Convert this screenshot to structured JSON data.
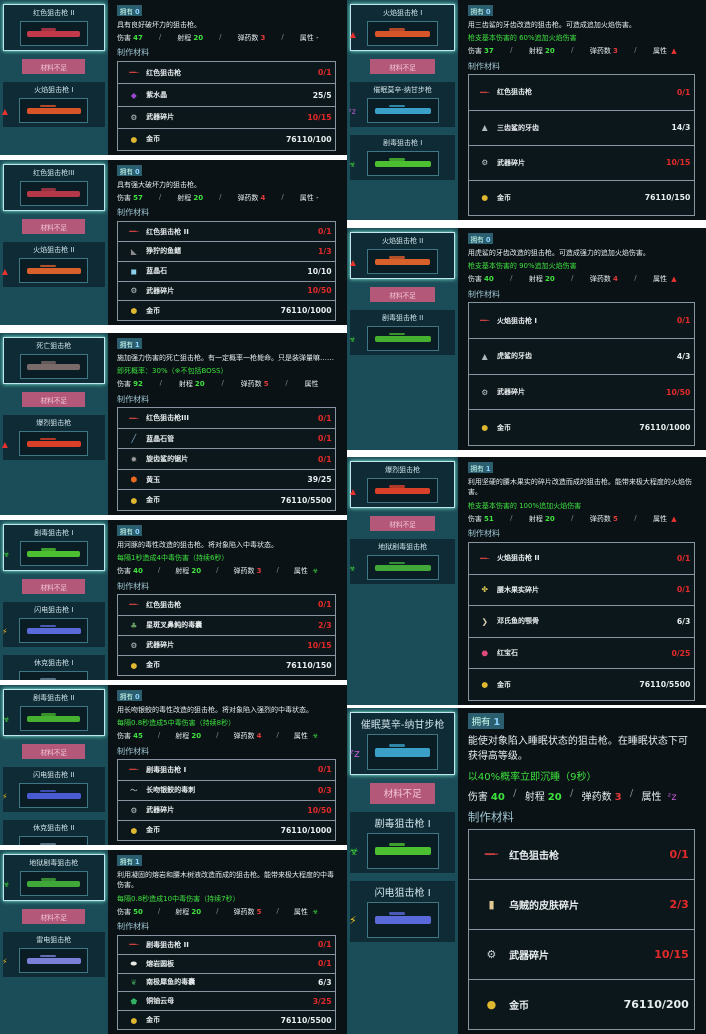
{
  "labels": {
    "owned": "拥有",
    "damage": "伤害",
    "range": "射程",
    "ammo": "弹药数",
    "attribute": "属性",
    "materials_title": "制作材料",
    "not_enough": "材料不足"
  },
  "icons": {
    "fire": "▲",
    "poison": "☣",
    "lightning": "⚡",
    "sleep": "ᶻz",
    "none": ""
  },
  "colors": {
    "fire": "#e8322e",
    "poison": "#3fd43a",
    "lightning": "#f0c020",
    "sleep": "#c65cd8",
    "short_button": "#b4587a",
    "ok": "#3ee23e",
    "bad": "#e52a2a"
  },
  "panels": [
    {
      "list": [
        {
          "name": "红色狙击枪 II",
          "gun_color": "#c23a4a",
          "attr": "none",
          "selected": true
        },
        {
          "name": "火焰狙击枪 I",
          "gun_color": "#d8552a",
          "attr": "fire"
        }
      ],
      "owned": "0",
      "desc": "具有良好破坏力的狙击枪。",
      "effect": "",
      "damage": "47",
      "range": "20",
      "ammo": "3",
      "attribute": "-",
      "attribute_icon": "none",
      "materials": [
        {
          "icon": "gun",
          "name": "红色狙击枪",
          "value": "0/1",
          "ok": false
        },
        {
          "icon": "crystal",
          "name": "紫水晶",
          "value": "25/5",
          "ok": true
        },
        {
          "icon": "scrap",
          "name": "武器碎片",
          "value": "10/15",
          "ok": false
        },
        {
          "icon": "coin",
          "name": "金币",
          "value": "76110/100",
          "ok": true
        }
      ]
    },
    {
      "list": [
        {
          "name": "红色狙击枪III",
          "gun_color": "#b43848",
          "attr": "none",
          "selected": true
        },
        {
          "name": "火焰狙击枪 II",
          "gun_color": "#d8602a",
          "attr": "fire"
        }
      ],
      "owned": "0",
      "desc": "具有强大破坏力的狙击枪。",
      "effect": "",
      "damage": "57",
      "range": "20",
      "ammo": "4",
      "attribute": "-",
      "attribute_icon": "none",
      "materials": [
        {
          "icon": "gun",
          "name": "红色狙击枪 II",
          "value": "0/1",
          "ok": false
        },
        {
          "icon": "fin",
          "name": "狰狞的鱼鳍",
          "value": "1/3",
          "ok": false
        },
        {
          "icon": "ice",
          "name": "蓝晶石",
          "value": "10/10",
          "ok": true
        },
        {
          "icon": "scrap",
          "name": "武器碎片",
          "value": "10/50",
          "ok": false
        },
        {
          "icon": "coin",
          "name": "金币",
          "value": "76110/1000",
          "ok": true
        }
      ]
    },
    {
      "list": [
        {
          "name": "死亡狙击枪",
          "gun_color": "#7a6a6a",
          "attr": "none",
          "selected": true
        },
        {
          "name": "爆烈狙击枪",
          "gun_color": "#d8402a",
          "attr": "fire"
        }
      ],
      "owned": "1",
      "desc": "施加强力伤害的死亡狙击枪。有一定概率一枪毙命。只是装弹量嘛……",
      "effect": "即死概率：30%（※不包括BOSS）",
      "damage": "92",
      "range": "20",
      "ammo": "5",
      "attribute": "",
      "attribute_icon": "none",
      "materials": [
        {
          "icon": "gun",
          "name": "红色狙击枪III",
          "value": "0/1",
          "ok": false
        },
        {
          "icon": "tube",
          "name": "蓝晶石管",
          "value": "0/1",
          "ok": false
        },
        {
          "icon": "gear",
          "name": "旋齿鲨的锯片",
          "value": "0/1",
          "ok": false
        },
        {
          "icon": "amber",
          "name": "黄玉",
          "value": "39/25",
          "ok": true
        },
        {
          "icon": "coin",
          "name": "金币",
          "value": "76110/5500",
          "ok": true
        }
      ]
    },
    {
      "list": [
        {
          "name": "剧毒狙击枪 I",
          "gun_color": "#4cc030",
          "attr": "poison",
          "selected": true
        },
        {
          "name": "闪电狙击枪 I",
          "gun_color": "#5a6ad8",
          "attr": "lightning"
        },
        {
          "name": "休克狙击枪 I",
          "gun_color": "#6a8aa0",
          "attr": "none"
        }
      ],
      "owned": "0",
      "desc": "用河豚的毒性改造的狙击枪。将对象陷入中毒状态。",
      "effect": "每隔1秒造成4中毒伤害（持续6秒）",
      "damage": "40",
      "range": "20",
      "ammo": "3",
      "attribute": "",
      "attribute_icon": "poison",
      "materials": [
        {
          "icon": "gun",
          "name": "红色狙击枪",
          "value": "0/1",
          "ok": false
        },
        {
          "icon": "bag",
          "name": "星斑叉鼻鲀的毒囊",
          "value": "2/3",
          "ok": false
        },
        {
          "icon": "scrap",
          "name": "武器碎片",
          "value": "10/15",
          "ok": false
        },
        {
          "icon": "coin",
          "name": "金币",
          "value": "76110/150",
          "ok": true
        }
      ]
    },
    {
      "list": [
        {
          "name": "剧毒狙击枪 II",
          "gun_color": "#46b030",
          "attr": "poison",
          "selected": true
        },
        {
          "name": "闪电狙击枪 II",
          "gun_color": "#4a5ad0",
          "attr": "lightning"
        },
        {
          "name": "休克狙击枪 II",
          "gun_color": "#6a8aa0",
          "attr": "none"
        }
      ],
      "owned": "0",
      "desc": "用长吻银鲛的毒性改造的狙击枪。将对象陷入强烈的中毒状态。",
      "effect": "每隔0.8秒造成5中毒伤害（持续8秒）",
      "damage": "45",
      "range": "20",
      "ammo": "4",
      "attribute": "",
      "attribute_icon": "poison",
      "materials": [
        {
          "icon": "gun",
          "name": "剧毒狙击枪 I",
          "value": "0/1",
          "ok": false
        },
        {
          "icon": "spine",
          "name": "长吻银鲛的毒刺",
          "value": "0/3",
          "ok": false
        },
        {
          "icon": "scrap",
          "name": "武器碎片",
          "value": "10/50",
          "ok": false
        },
        {
          "icon": "coin",
          "name": "金币",
          "value": "76110/1000",
          "ok": true
        }
      ]
    },
    {
      "list": [
        {
          "name": "地狱剧毒狙击枪",
          "gun_color": "#40a838",
          "attr": "poison",
          "selected": true
        },
        {
          "name": "雷电狙击枪",
          "gun_color": "#7a80d8",
          "attr": "lightning"
        }
      ],
      "owned": "1",
      "desc": "利用凝固的熔岩和腰木树液改造而成的狙击枪。能带来极大程度的中毒伤害。",
      "effect": "每隔0.8秒造成10中毒伤害（持续7秒）",
      "damage": "50",
      "range": "20",
      "ammo": "5",
      "attribute": "",
      "attribute_icon": "poison",
      "materials": [
        {
          "icon": "gun",
          "name": "剧毒狙击枪 II",
          "value": "0/1",
          "ok": false
        },
        {
          "icon": "pearl",
          "name": "熔岩圆板",
          "value": "0/1",
          "ok": false
        },
        {
          "icon": "leaf",
          "name": "南极犀鱼的毒囊",
          "value": "6/3",
          "ok": true
        },
        {
          "icon": "mica",
          "name": "铜铀云母",
          "value": "3/25",
          "ok": false
        },
        {
          "icon": "coin",
          "name": "金币",
          "value": "76110/5500",
          "ok": true
        }
      ]
    },
    {
      "list": [
        {
          "name": "火焰狙击枪 I",
          "gun_color": "#d8552a",
          "attr": "fire",
          "selected": true
        },
        {
          "name": "催眠莫辛-纳甘步枪",
          "gun_color": "#3aa0c8",
          "attr": "sleep"
        },
        {
          "name": "剧毒狙击枪 I",
          "gun_color": "#4cc030",
          "attr": "poison"
        }
      ],
      "owned": "0",
      "desc": "用三齿鲨的牙齿改造的狙击枪。可造成追加火焰伤害。",
      "effect": "枪支基本伤害的 60%追加火焰伤害",
      "damage": "37",
      "range": "20",
      "ammo": "3",
      "attribute": "",
      "attribute_icon": "fire",
      "materials": [
        {
          "icon": "gun",
          "name": "红色狙击枪",
          "value": "0/1",
          "ok": false
        },
        {
          "icon": "tooth",
          "name": "三齿鲨的牙齿",
          "value": "14/3",
          "ok": true
        },
        {
          "icon": "scrap",
          "name": "武器碎片",
          "value": "10/15",
          "ok": false
        },
        {
          "icon": "coin",
          "name": "金币",
          "value": "76110/150",
          "ok": true
        }
      ]
    },
    {
      "list": [
        {
          "name": "火焰狙击枪 II",
          "gun_color": "#d8602a",
          "attr": "fire",
          "selected": true
        },
        {
          "name": "剧毒狙击枪 II",
          "gun_color": "#46b030",
          "attr": "poison"
        }
      ],
      "owned": "0",
      "desc": "用虎鲨的牙齿改造的狙击枪。可造成强力的追加火焰伤害。",
      "effect": "枪支基本伤害的 90%追加火焰伤害",
      "damage": "40",
      "range": "20",
      "ammo": "4",
      "attribute": "",
      "attribute_icon": "fire",
      "materials": [
        {
          "icon": "gun",
          "name": "火焰狙击枪 I",
          "value": "0/1",
          "ok": false
        },
        {
          "icon": "tooth",
          "name": "虎鲨的牙齿",
          "value": "4/3",
          "ok": true
        },
        {
          "icon": "scrap",
          "name": "武器碎片",
          "value": "10/50",
          "ok": false
        },
        {
          "icon": "coin",
          "name": "金币",
          "value": "76110/1000",
          "ok": true
        }
      ]
    },
    {
      "list": [
        {
          "name": "爆烈狙击枪",
          "gun_color": "#d8402a",
          "attr": "fire",
          "selected": true
        },
        {
          "name": "地狱剧毒狙击枪",
          "gun_color": "#40a838",
          "attr": "poison"
        }
      ],
      "owned": "1",
      "desc": "利用坚硬的腰木果实的碎片改造而成的狙击枪。能带来极大程度的火焰伤害。",
      "effect": "枪支基本伤害的 100%追加火焰伤害",
      "damage": "51",
      "range": "20",
      "ammo": "5",
      "attribute": "",
      "attribute_icon": "fire",
      "materials": [
        {
          "icon": "gun",
          "name": "火焰狙击枪 II",
          "value": "0/1",
          "ok": false
        },
        {
          "icon": "nut",
          "name": "腰木果实碎片",
          "value": "0/1",
          "ok": false
        },
        {
          "icon": "beak",
          "name": "邓氏鱼的颚骨",
          "value": "6/3",
          "ok": true
        },
        {
          "icon": "ruby",
          "name": "红宝石",
          "value": "0/25",
          "ok": false
        },
        {
          "icon": "coin",
          "name": "金币",
          "value": "76110/5500",
          "ok": true
        }
      ]
    },
    {
      "list": [
        {
          "name": "催眠莫辛-纳甘步枪",
          "gun_color": "#3aa0c8",
          "attr": "sleep",
          "selected": true
        },
        {
          "name": "剧毒狙击枪 I",
          "gun_color": "#4cc030",
          "attr": "poison"
        },
        {
          "name": "闪电狙击枪 I",
          "gun_color": "#5a6ad8",
          "attr": "lightning"
        }
      ],
      "owned": "1",
      "desc": "能使对象陷入睡眠状态的狙击枪。在睡眠状态下可获得高等级。",
      "effect": "以40%概率立即沉睡（9秒）",
      "damage": "40",
      "range": "20",
      "ammo": "3",
      "attribute": "",
      "attribute_icon": "sleep",
      "materials": [
        {
          "icon": "gun",
          "name": "红色狙击枪",
          "value": "0/1",
          "ok": false
        },
        {
          "icon": "skin",
          "name": "乌贼的皮肤碎片",
          "value": "2/3",
          "ok": false
        },
        {
          "icon": "scrap",
          "name": "武器碎片",
          "value": "10/15",
          "ok": false
        },
        {
          "icon": "coin",
          "name": "金币",
          "value": "76110/200",
          "ok": true
        }
      ]
    }
  ],
  "material_icons": {
    "gun": [
      "━╾",
      "#c84040"
    ],
    "crystal": [
      "◆",
      "#9a4ad0"
    ],
    "scrap": [
      "⚙",
      "#c8d0d8"
    ],
    "coin": [
      "●",
      "#e0b830"
    ],
    "fin": [
      "◣",
      "#8a8a8a"
    ],
    "ice": [
      "◼",
      "#8ad0e8"
    ],
    "tube": [
      "╱",
      "#8ab8d8"
    ],
    "gear": [
      "✹",
      "#a0a0a0"
    ],
    "amber": [
      "⬢",
      "#e86a20"
    ],
    "bag": [
      "♣",
      "#6aa060"
    ],
    "spine": [
      "〜",
      "#d8d8d8"
    ],
    "pearl": [
      "⬬",
      "#e8e8e0"
    ],
    "leaf": [
      "❦",
      "#3a8a50"
    ],
    "mica": [
      "⬟",
      "#30b060"
    ],
    "tooth": [
      "▲",
      "#b0b8c0"
    ],
    "nut": [
      "✤",
      "#d8c850"
    ],
    "beak": [
      "❯",
      "#d8d0b0"
    ],
    "ruby": [
      "⬣",
      "#e04a7a"
    ],
    "skin": [
      "▮",
      "#e0c890"
    ]
  }
}
